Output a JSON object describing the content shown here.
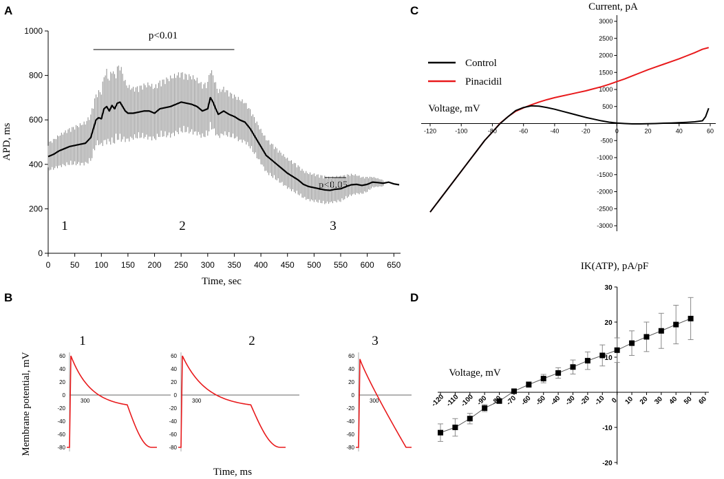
{
  "colors": {
    "control": "#000000",
    "pinacidil": "#e8191b",
    "trace": "#e8191b",
    "axis": "#000000",
    "errorbar": "#888888"
  },
  "chart_data": [
    {
      "panel": "A",
      "type": "line",
      "xlabel": "Time,  sec",
      "ylabel": "APD, ms",
      "xlim": [
        0,
        660
      ],
      "ylim": [
        0,
        1000
      ],
      "xticks": [
        0,
        50,
        100,
        150,
        200,
        250,
        300,
        350,
        400,
        450,
        500,
        550,
        600,
        650
      ],
      "yticks": [
        0,
        200,
        400,
        600,
        800,
        1000
      ],
      "series": [
        {
          "name": "APD",
          "x": [
            0,
            10,
            20,
            30,
            40,
            50,
            60,
            70,
            80,
            85,
            90,
            95,
            100,
            105,
            110,
            115,
            120,
            125,
            130,
            135,
            140,
            145,
            150,
            160,
            170,
            180,
            190,
            200,
            210,
            220,
            230,
            240,
            250,
            260,
            270,
            280,
            290,
            300,
            305,
            310,
            315,
            320,
            330,
            340,
            350,
            360,
            370,
            380,
            390,
            400,
            410,
            420,
            430,
            440,
            450,
            460,
            470,
            480,
            490,
            500,
            510,
            520,
            530,
            540,
            550,
            560,
            570,
            580,
            590,
            600,
            610,
            620,
            630,
            640,
            650,
            660
          ],
          "values": [
            435,
            445,
            460,
            470,
            480,
            485,
            490,
            495,
            520,
            560,
            600,
            610,
            605,
            650,
            660,
            640,
            665,
            650,
            675,
            680,
            660,
            640,
            630,
            630,
            635,
            640,
            640,
            630,
            650,
            655,
            660,
            670,
            680,
            675,
            670,
            660,
            640,
            650,
            700,
            680,
            650,
            625,
            640,
            625,
            615,
            600,
            590,
            560,
            520,
            480,
            440,
            420,
            400,
            380,
            360,
            345,
            330,
            310,
            300,
            295,
            290,
            285,
            283,
            288,
            290,
            300,
            308,
            310,
            305,
            310,
            320,
            318,
            315,
            320,
            312,
            308
          ],
          "errors": [
            65,
            70,
            75,
            80,
            85,
            90,
            95,
            100,
            110,
            120,
            120,
            125,
            130,
            160,
            170,
            150,
            180,
            160,
            170,
            180,
            160,
            140,
            130,
            120,
            120,
            125,
            130,
            125,
            130,
            135,
            140,
            140,
            140,
            135,
            135,
            130,
            125,
            125,
            140,
            130,
            120,
            110,
            110,
            105,
            100,
            100,
            95,
            90,
            85,
            80,
            80,
            78,
            75,
            72,
            70,
            70,
            68,
            65,
            65,
            65,
            65,
            65,
            60,
            60,
            60,
            55,
            50,
            45,
            40,
            35,
            25,
            20,
            15,
            10,
            5,
            0
          ]
        }
      ],
      "annotations": {
        "sig1": {
          "text": "p<0.01",
          "x_range": [
            85,
            350
          ]
        },
        "sig2": {
          "text": "p<0.05",
          "x_range": [
            520,
            560
          ]
        },
        "phase_labels": [
          {
            "text": "1",
            "x": 30
          },
          {
            "text": "2",
            "x": 255
          },
          {
            "text": "3",
            "x": 540
          }
        ]
      }
    },
    {
      "panel": "B",
      "type": "line",
      "xlabel": "Time,  ms",
      "ylabel": "Membrane potential,  mV",
      "ylim": [
        -85,
        65
      ],
      "yticks": [
        60,
        40,
        20,
        0,
        -20,
        -40,
        -60,
        -80
      ],
      "scale_label": "300",
      "traces": [
        {
          "label": "1",
          "resting": -80,
          "peak": 60,
          "apd_ms": 430
        },
        {
          "label": "2",
          "resting": -80,
          "peak": 60,
          "apd_ms": 640
        },
        {
          "label": "3",
          "resting": -80,
          "peak": 55,
          "apd_ms": 270
        }
      ]
    },
    {
      "panel": "C",
      "type": "line",
      "title": "Current,  pA",
      "xlabel": "Voltage,  mV",
      "xlim": [
        -120,
        60
      ],
      "ylim": [
        -3000,
        3000
      ],
      "xticks": [
        -120,
        -100,
        -80,
        -60,
        -40,
        -20,
        0,
        20,
        40,
        60
      ],
      "yticks": [
        3000,
        2500,
        2000,
        1500,
        1000,
        500,
        -500,
        -1000,
        -1500,
        -2000,
        -2500,
        -3000
      ],
      "legend": [
        "Control",
        "Pinacidil"
      ],
      "series": [
        {
          "name": "Control",
          "x": [
            -120,
            -110,
            -100,
            -95,
            -90,
            -85,
            -80,
            -75,
            -70,
            -65,
            -60,
            -55,
            -50,
            -45,
            -40,
            -35,
            -30,
            -25,
            -20,
            -15,
            -10,
            -5,
            0,
            5,
            10,
            15,
            20,
            25,
            30,
            35,
            40,
            45,
            50,
            55,
            57,
            59
          ],
          "values": [
            -2600,
            -2000,
            -1400,
            -1100,
            -800,
            -500,
            -250,
            0,
            200,
            380,
            470,
            520,
            510,
            470,
            420,
            360,
            300,
            240,
            180,
            130,
            80,
            40,
            15,
            0,
            -10,
            -10,
            -5,
            0,
            10,
            15,
            25,
            35,
            50,
            80,
            200,
            450
          ]
        },
        {
          "name": "Pinacidil",
          "x": [
            -120,
            -110,
            -100,
            -95,
            -90,
            -85,
            -80,
            -75,
            -70,
            -65,
            -60,
            -55,
            -50,
            -45,
            -40,
            -35,
            -30,
            -25,
            -20,
            -15,
            -10,
            -5,
            0,
            5,
            10,
            15,
            20,
            25,
            30,
            35,
            40,
            45,
            50,
            55,
            59
          ],
          "values": [
            -2600,
            -2000,
            -1400,
            -1100,
            -800,
            -500,
            -250,
            10,
            200,
            360,
            460,
            550,
            630,
            700,
            760,
            810,
            860,
            910,
            960,
            1020,
            1080,
            1150,
            1230,
            1310,
            1400,
            1490,
            1580,
            1660,
            1740,
            1820,
            1900,
            1990,
            2080,
            2180,
            2230
          ]
        }
      ]
    },
    {
      "panel": "D",
      "type": "scatter",
      "title": "IK(ATP), pA/pF",
      "xlabel": "Voltage,  mV",
      "xlim": [
        -120,
        60
      ],
      "ylim": [
        -20,
        30
      ],
      "xticks": [
        -120,
        -110,
        -100,
        -90,
        -80,
        -70,
        -60,
        -50,
        -40,
        -30,
        -20,
        -10,
        0,
        10,
        20,
        30,
        40,
        50,
        60
      ],
      "yticks": [
        30,
        20,
        10,
        -10,
        -20
      ],
      "series": [
        {
          "name": "IK(ATP)",
          "x": [
            -120,
            -110,
            -100,
            -90,
            -80,
            -70,
            -60,
            -50,
            -40,
            -30,
            -20,
            -10,
            0,
            10,
            20,
            30,
            40,
            50
          ],
          "values": [
            -11.5,
            -10,
            -7.5,
            -4.5,
            -2.5,
            0.3,
            2.2,
            3.9,
            5.5,
            7.2,
            9,
            10.5,
            12,
            14,
            15.8,
            17.5,
            19.3,
            21
          ],
          "errors": [
            2.5,
            2.5,
            1.5,
            1,
            0.5,
            0.5,
            0.8,
            1.2,
            1.5,
            2,
            2.5,
            3,
            3.5,
            3.5,
            4.2,
            5,
            5.5,
            6
          ]
        }
      ]
    }
  ],
  "panels": {
    "A": "A",
    "B": "B",
    "C": "C",
    "D": "D"
  }
}
